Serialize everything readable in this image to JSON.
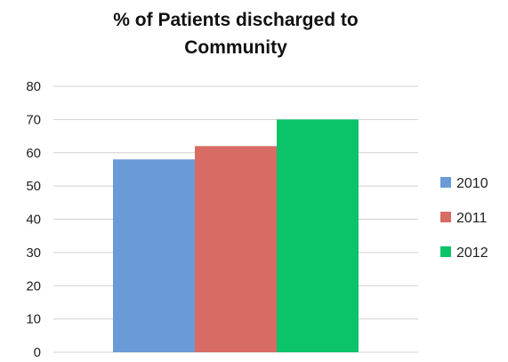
{
  "chart_data": {
    "type": "bar",
    "title_lines": [
      "% of Patients discharged to",
      "Community"
    ],
    "categories": [
      ""
    ],
    "series": [
      {
        "name": "2010",
        "values": [
          58
        ],
        "color": "#6a9bd6"
      },
      {
        "name": "2011",
        "values": [
          62
        ],
        "color": "#d96b65"
      },
      {
        "name": "2012",
        "values": [
          70
        ],
        "color": "#0bc46a"
      }
    ],
    "xlabel": "",
    "ylabel": "",
    "ylim": [
      0,
      80
    ],
    "yticks": [
      "0",
      "10",
      "20",
      "30",
      "40",
      "50",
      "60",
      "70",
      "80"
    ],
    "grid": true,
    "legend": "right"
  }
}
